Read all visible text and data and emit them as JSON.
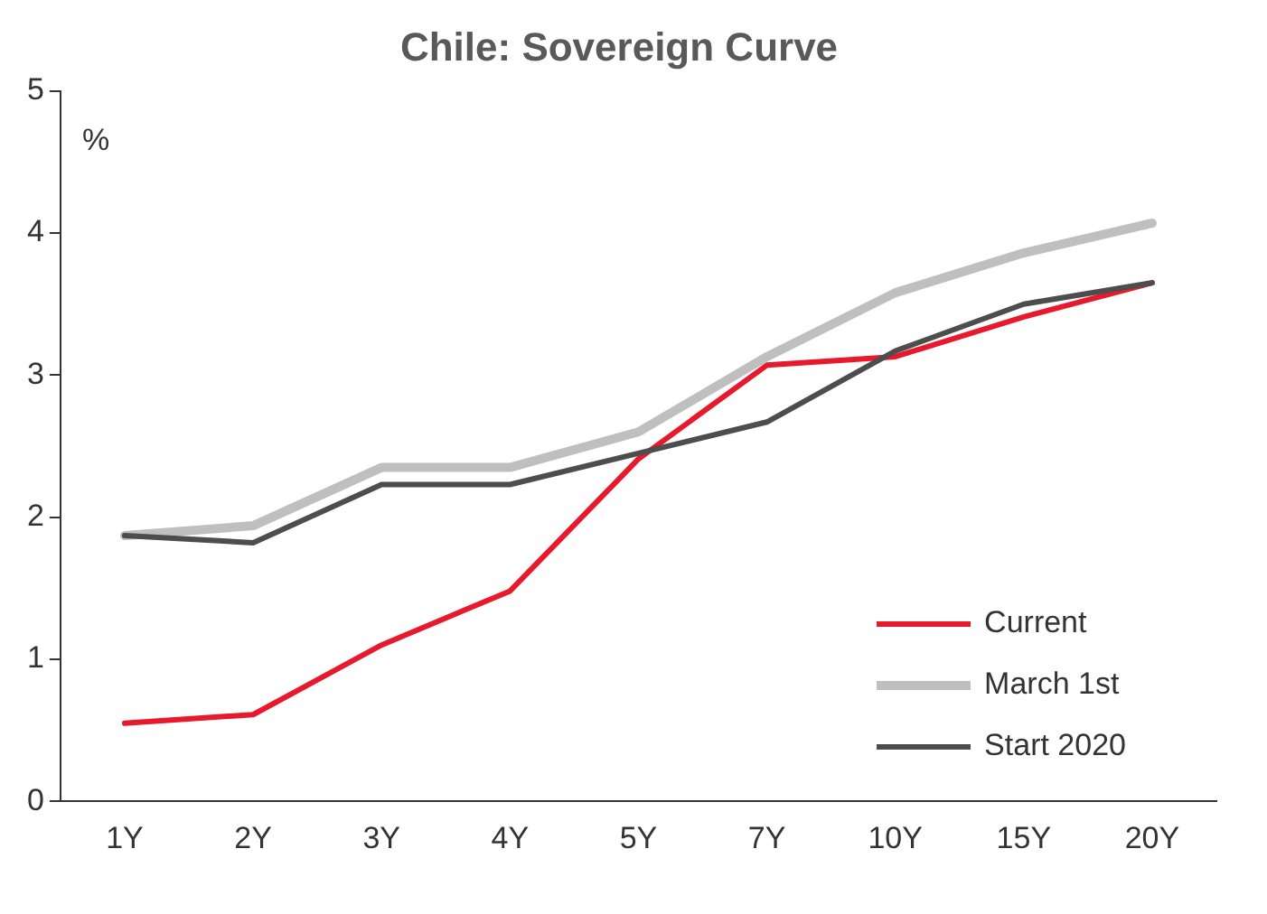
{
  "chart_data": {
    "type": "line",
    "title": "Chile: Sovereign Curve",
    "categories": [
      "1Y",
      "2Y",
      "3Y",
      "4Y",
      "5Y",
      "7Y",
      "10Y",
      "15Y",
      "20Y"
    ],
    "series": [
      {
        "name": "Current",
        "color": "#e8192c",
        "values": [
          0.55,
          0.61,
          1.1,
          1.48,
          2.41,
          3.07,
          3.13,
          3.41,
          3.65
        ]
      },
      {
        "name": "March 1st",
        "color": "#bfbfbf",
        "values": [
          1.87,
          1.94,
          2.35,
          2.35,
          2.6,
          3.13,
          3.58,
          3.86,
          4.07
        ]
      },
      {
        "name": "Start 2020",
        "color": "#4d4d4d",
        "values": [
          1.87,
          1.82,
          2.23,
          2.23,
          2.45,
          2.67,
          3.17,
          3.5,
          3.65
        ]
      }
    ],
    "ylim": [
      0,
      5
    ],
    "yticks": [
      0,
      1,
      2,
      3,
      4,
      5
    ],
    "grid": false,
    "legend": "bottom right",
    "marker": "none",
    "line_style": "solid",
    "annotations": [
      "%"
    ]
  }
}
